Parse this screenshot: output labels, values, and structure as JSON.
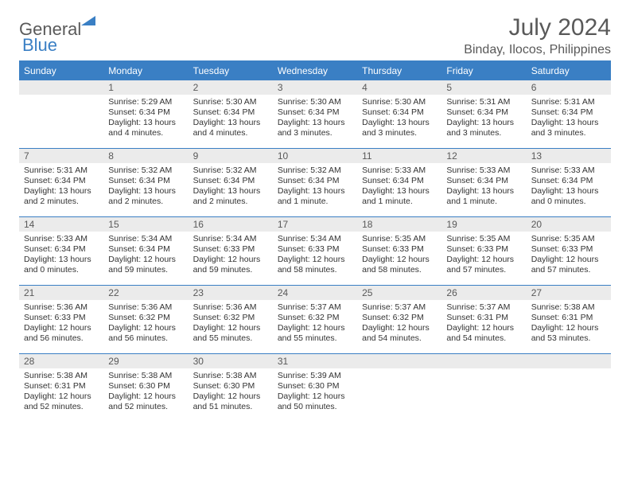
{
  "brand": {
    "part1": "General",
    "part2": "Blue"
  },
  "title": "July 2024",
  "location": "Binday, Ilocos, Philippines",
  "colors": {
    "accent": "#3a7fc4",
    "header_text": "#ffffff",
    "daynum_bg": "#ebebeb",
    "text": "#333333",
    "muted": "#595959",
    "background": "#ffffff"
  },
  "daysOfWeek": [
    "Sunday",
    "Monday",
    "Tuesday",
    "Wednesday",
    "Thursday",
    "Friday",
    "Saturday"
  ],
  "weeks": [
    [
      null,
      {
        "n": "1",
        "sr": "5:29 AM",
        "ss": "6:34 PM",
        "dl": "13 hours and 4 minutes."
      },
      {
        "n": "2",
        "sr": "5:30 AM",
        "ss": "6:34 PM",
        "dl": "13 hours and 4 minutes."
      },
      {
        "n": "3",
        "sr": "5:30 AM",
        "ss": "6:34 PM",
        "dl": "13 hours and 3 minutes."
      },
      {
        "n": "4",
        "sr": "5:30 AM",
        "ss": "6:34 PM",
        "dl": "13 hours and 3 minutes."
      },
      {
        "n": "5",
        "sr": "5:31 AM",
        "ss": "6:34 PM",
        "dl": "13 hours and 3 minutes."
      },
      {
        "n": "6",
        "sr": "5:31 AM",
        "ss": "6:34 PM",
        "dl": "13 hours and 3 minutes."
      }
    ],
    [
      {
        "n": "7",
        "sr": "5:31 AM",
        "ss": "6:34 PM",
        "dl": "13 hours and 2 minutes."
      },
      {
        "n": "8",
        "sr": "5:32 AM",
        "ss": "6:34 PM",
        "dl": "13 hours and 2 minutes."
      },
      {
        "n": "9",
        "sr": "5:32 AM",
        "ss": "6:34 PM",
        "dl": "13 hours and 2 minutes."
      },
      {
        "n": "10",
        "sr": "5:32 AM",
        "ss": "6:34 PM",
        "dl": "13 hours and 1 minute."
      },
      {
        "n": "11",
        "sr": "5:33 AM",
        "ss": "6:34 PM",
        "dl": "13 hours and 1 minute."
      },
      {
        "n": "12",
        "sr": "5:33 AM",
        "ss": "6:34 PM",
        "dl": "13 hours and 1 minute."
      },
      {
        "n": "13",
        "sr": "5:33 AM",
        "ss": "6:34 PM",
        "dl": "13 hours and 0 minutes."
      }
    ],
    [
      {
        "n": "14",
        "sr": "5:33 AM",
        "ss": "6:34 PM",
        "dl": "13 hours and 0 minutes."
      },
      {
        "n": "15",
        "sr": "5:34 AM",
        "ss": "6:34 PM",
        "dl": "12 hours and 59 minutes."
      },
      {
        "n": "16",
        "sr": "5:34 AM",
        "ss": "6:33 PM",
        "dl": "12 hours and 59 minutes."
      },
      {
        "n": "17",
        "sr": "5:34 AM",
        "ss": "6:33 PM",
        "dl": "12 hours and 58 minutes."
      },
      {
        "n": "18",
        "sr": "5:35 AM",
        "ss": "6:33 PM",
        "dl": "12 hours and 58 minutes."
      },
      {
        "n": "19",
        "sr": "5:35 AM",
        "ss": "6:33 PM",
        "dl": "12 hours and 57 minutes."
      },
      {
        "n": "20",
        "sr": "5:35 AM",
        "ss": "6:33 PM",
        "dl": "12 hours and 57 minutes."
      }
    ],
    [
      {
        "n": "21",
        "sr": "5:36 AM",
        "ss": "6:33 PM",
        "dl": "12 hours and 56 minutes."
      },
      {
        "n": "22",
        "sr": "5:36 AM",
        "ss": "6:32 PM",
        "dl": "12 hours and 56 minutes."
      },
      {
        "n": "23",
        "sr": "5:36 AM",
        "ss": "6:32 PM",
        "dl": "12 hours and 55 minutes."
      },
      {
        "n": "24",
        "sr": "5:37 AM",
        "ss": "6:32 PM",
        "dl": "12 hours and 55 minutes."
      },
      {
        "n": "25",
        "sr": "5:37 AM",
        "ss": "6:32 PM",
        "dl": "12 hours and 54 minutes."
      },
      {
        "n": "26",
        "sr": "5:37 AM",
        "ss": "6:31 PM",
        "dl": "12 hours and 54 minutes."
      },
      {
        "n": "27",
        "sr": "5:38 AM",
        "ss": "6:31 PM",
        "dl": "12 hours and 53 minutes."
      }
    ],
    [
      {
        "n": "28",
        "sr": "5:38 AM",
        "ss": "6:31 PM",
        "dl": "12 hours and 52 minutes."
      },
      {
        "n": "29",
        "sr": "5:38 AM",
        "ss": "6:30 PM",
        "dl": "12 hours and 52 minutes."
      },
      {
        "n": "30",
        "sr": "5:38 AM",
        "ss": "6:30 PM",
        "dl": "12 hours and 51 minutes."
      },
      {
        "n": "31",
        "sr": "5:39 AM",
        "ss": "6:30 PM",
        "dl": "12 hours and 50 minutes."
      },
      null,
      null,
      null
    ]
  ],
  "labels": {
    "sunrise": "Sunrise:",
    "sunset": "Sunset:",
    "daylight": "Daylight:"
  }
}
